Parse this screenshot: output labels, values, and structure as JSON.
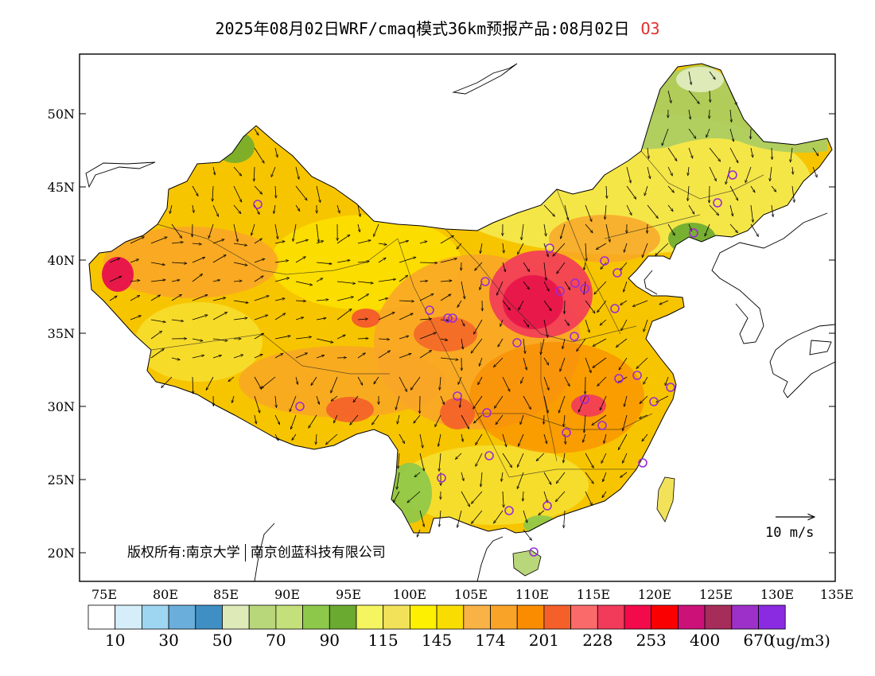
{
  "title": {
    "main": "2025年08月02日WRF/cmaq模式36km预报产品:08月02日",
    "pollutant": "O3",
    "pollutant_color": "#e23030"
  },
  "map": {
    "lat_labels": [
      "50N",
      "45N",
      "40N",
      "35N",
      "30N",
      "25N",
      "20N"
    ],
    "lon_labels": [
      "75E",
      "80E",
      "85E",
      "90E",
      "95E",
      "100E",
      "105E",
      "110E",
      "115E",
      "120E",
      "125E",
      "130E",
      "135E"
    ],
    "copyright_prefix": "版权所有:",
    "copyright_org1": "南京大学",
    "copyright_org2": "南京创蓝科技有限公司",
    "vector_reference": "10 m/s",
    "hotspot_color": "#e8194a",
    "land_base_color": "#f7c500"
  },
  "colorbar": {
    "colors": [
      "#ffffff",
      "#d6eefa",
      "#9ed6f2",
      "#6aaedb",
      "#3f8fc4",
      "#deeab8",
      "#b8d67a",
      "#c4e07a",
      "#8dc84a",
      "#6aaa30",
      "#f4f560",
      "#f2e25a",
      "#fdf000",
      "#fadd00",
      "#f9b245",
      "#f9a428",
      "#fa8c00",
      "#f45f2a",
      "#fb6a6a",
      "#f23a5a",
      "#f20a4a",
      "#fb0000",
      "#cc1178",
      "#a62c5a",
      "#9c30c8",
      "#8a2be2"
    ],
    "tick_labels": [
      "10",
      "30",
      "50",
      "70",
      "90",
      "115",
      "145",
      "174",
      "201",
      "228",
      "253",
      "400",
      "670"
    ],
    "unit": "(ug/m3)"
  }
}
